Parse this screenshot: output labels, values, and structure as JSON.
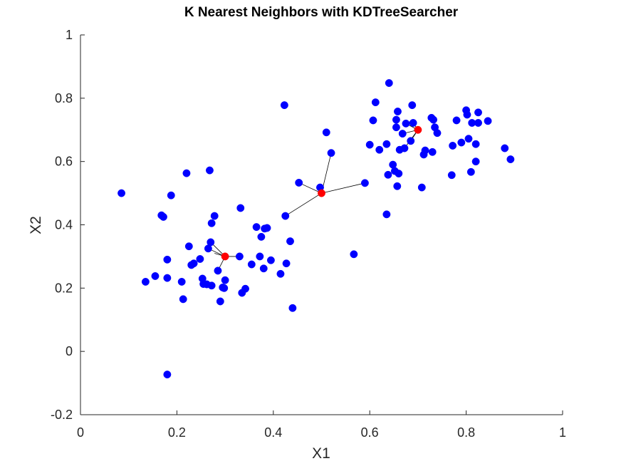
{
  "chart_data": {
    "type": "scatter",
    "title": "K Nearest Neighbors with KDTreeSearcher",
    "xlabel": "X1",
    "ylabel": "X2",
    "xlim": [
      0,
      1
    ],
    "ylim": [
      -0.2,
      1
    ],
    "xticks": [
      "0",
      "0.2",
      "0.4",
      "0.6",
      "0.8",
      "1"
    ],
    "yticks": [
      "-0.2",
      "0",
      "0.2",
      "0.4",
      "0.6",
      "0.8",
      "1"
    ],
    "grid": false,
    "legend": "none",
    "colors": {
      "data": "#0000ff",
      "query": "#ff0000",
      "edge": "#000000"
    },
    "series": [
      {
        "role": "data",
        "points": [
          [
            0.085,
            0.5
          ],
          [
            0.18,
            -0.073
          ],
          [
            0.135,
            0.22
          ],
          [
            0.155,
            0.238
          ],
          [
            0.168,
            0.43
          ],
          [
            0.172,
            0.425
          ],
          [
            0.18,
            0.29
          ],
          [
            0.18,
            0.232
          ],
          [
            0.188,
            0.493
          ],
          [
            0.21,
            0.22
          ],
          [
            0.213,
            0.165
          ],
          [
            0.22,
            0.563
          ],
          [
            0.225,
            0.332
          ],
          [
            0.23,
            0.273
          ],
          [
            0.235,
            0.278
          ],
          [
            0.248,
            0.292
          ],
          [
            0.253,
            0.23
          ],
          [
            0.255,
            0.213
          ],
          [
            0.262,
            0.212
          ],
          [
            0.265,
            0.325
          ],
          [
            0.268,
            0.572
          ],
          [
            0.27,
            0.345
          ],
          [
            0.272,
            0.405
          ],
          [
            0.272,
            0.208
          ],
          [
            0.278,
            0.428
          ],
          [
            0.285,
            0.255
          ],
          [
            0.29,
            0.158
          ],
          [
            0.295,
            0.202
          ],
          [
            0.298,
            0.2
          ],
          [
            0.3,
            0.225
          ],
          [
            0.33,
            0.3
          ],
          [
            0.332,
            0.453
          ],
          [
            0.335,
            0.185
          ],
          [
            0.342,
            0.198
          ],
          [
            0.355,
            0.275
          ],
          [
            0.365,
            0.393
          ],
          [
            0.372,
            0.3
          ],
          [
            0.375,
            0.362
          ],
          [
            0.38,
            0.262
          ],
          [
            0.382,
            0.388
          ],
          [
            0.387,
            0.39
          ],
          [
            0.395,
            0.288
          ],
          [
            0.415,
            0.245
          ],
          [
            0.423,
            0.778
          ],
          [
            0.425,
            0.428
          ],
          [
            0.427,
            0.278
          ],
          [
            0.435,
            0.348
          ],
          [
            0.44,
            0.137
          ],
          [
            0.453,
            0.533
          ],
          [
            0.497,
            0.518
          ],
          [
            0.51,
            0.692
          ],
          [
            0.52,
            0.627
          ],
          [
            0.567,
            0.307
          ],
          [
            0.59,
            0.532
          ],
          [
            0.6,
            0.653
          ],
          [
            0.607,
            0.73
          ],
          [
            0.612,
            0.787
          ],
          [
            0.62,
            0.637
          ],
          [
            0.635,
            0.655
          ],
          [
            0.635,
            0.433
          ],
          [
            0.638,
            0.558
          ],
          [
            0.64,
            0.848
          ],
          [
            0.648,
            0.59
          ],
          [
            0.652,
            0.57
          ],
          [
            0.655,
            0.708
          ],
          [
            0.655,
            0.732
          ],
          [
            0.657,
            0.522
          ],
          [
            0.658,
            0.758
          ],
          [
            0.66,
            0.562
          ],
          [
            0.662,
            0.637
          ],
          [
            0.668,
            0.688
          ],
          [
            0.672,
            0.642
          ],
          [
            0.675,
            0.72
          ],
          [
            0.685,
            0.665
          ],
          [
            0.688,
            0.778
          ],
          [
            0.69,
            0.722
          ],
          [
            0.708,
            0.518
          ],
          [
            0.712,
            0.622
          ],
          [
            0.715,
            0.635
          ],
          [
            0.728,
            0.738
          ],
          [
            0.73,
            0.63
          ],
          [
            0.732,
            0.732
          ],
          [
            0.735,
            0.708
          ],
          [
            0.74,
            0.69
          ],
          [
            0.77,
            0.557
          ],
          [
            0.772,
            0.65
          ],
          [
            0.78,
            0.73
          ],
          [
            0.79,
            0.66
          ],
          [
            0.8,
            0.762
          ],
          [
            0.802,
            0.748
          ],
          [
            0.805,
            0.672
          ],
          [
            0.81,
            0.567
          ],
          [
            0.812,
            0.722
          ],
          [
            0.82,
            0.6
          ],
          [
            0.82,
            0.655
          ],
          [
            0.825,
            0.755
          ],
          [
            0.825,
            0.722
          ],
          [
            0.845,
            0.728
          ],
          [
            0.88,
            0.642
          ],
          [
            0.892,
            0.607
          ]
        ]
      },
      {
        "role": "query",
        "points": [
          [
            0.3,
            0.3
          ],
          [
            0.5,
            0.5
          ],
          [
            0.7,
            0.7
          ]
        ]
      }
    ],
    "edges": [
      [
        [
          0.3,
          0.3
        ],
        [
          0.33,
          0.3
        ]
      ],
      [
        [
          0.3,
          0.3
        ],
        [
          0.27,
          0.345
        ]
      ],
      [
        [
          0.3,
          0.3
        ],
        [
          0.285,
          0.255
        ]
      ],
      [
        [
          0.3,
          0.3
        ],
        [
          0.265,
          0.325
        ]
      ],
      [
        [
          0.3,
          0.3
        ],
        [
          0.278,
          0.31
        ]
      ],
      [
        [
          0.5,
          0.5
        ],
        [
          0.497,
          0.518
        ]
      ],
      [
        [
          0.5,
          0.5
        ],
        [
          0.453,
          0.533
        ]
      ],
      [
        [
          0.5,
          0.5
        ],
        [
          0.52,
          0.627
        ]
      ],
      [
        [
          0.5,
          0.5
        ],
        [
          0.59,
          0.532
        ]
      ],
      [
        [
          0.5,
          0.5
        ],
        [
          0.425,
          0.428
        ]
      ],
      [
        [
          0.7,
          0.7
        ],
        [
          0.69,
          0.722
        ]
      ],
      [
        [
          0.7,
          0.7
        ],
        [
          0.668,
          0.688
        ]
      ],
      [
        [
          0.7,
          0.7
        ],
        [
          0.675,
          0.72
        ]
      ],
      [
        [
          0.7,
          0.7
        ],
        [
          0.685,
          0.665
        ]
      ],
      [
        [
          0.7,
          0.7
        ],
        [
          0.672,
          0.642
        ]
      ]
    ]
  }
}
